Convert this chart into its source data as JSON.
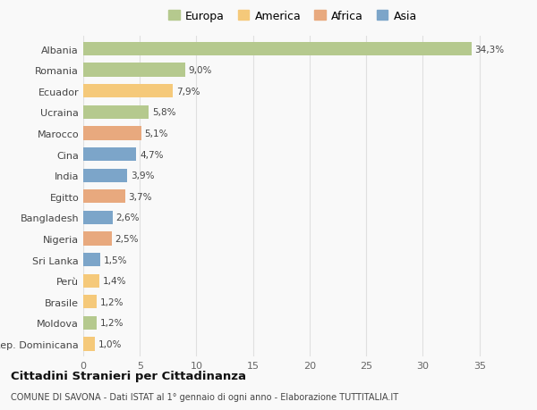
{
  "categories": [
    "Albania",
    "Romania",
    "Ecuador",
    "Ucraina",
    "Marocco",
    "Cina",
    "India",
    "Egitto",
    "Bangladesh",
    "Nigeria",
    "Sri Lanka",
    "Perù",
    "Brasile",
    "Moldova",
    "Rep. Dominicana"
  ],
  "values": [
    34.3,
    9.0,
    7.9,
    5.8,
    5.1,
    4.7,
    3.9,
    3.7,
    2.6,
    2.5,
    1.5,
    1.4,
    1.2,
    1.2,
    1.0
  ],
  "labels": [
    "34,3%",
    "9,0%",
    "7,9%",
    "5,8%",
    "5,1%",
    "4,7%",
    "3,9%",
    "3,7%",
    "2,6%",
    "2,5%",
    "1,5%",
    "1,4%",
    "1,2%",
    "1,2%",
    "1,0%"
  ],
  "colors": [
    "#b5c98e",
    "#b5c98e",
    "#f5c97a",
    "#b5c98e",
    "#e8a97e",
    "#7ca5c9",
    "#7ca5c9",
    "#e8a97e",
    "#7ca5c9",
    "#e8a97e",
    "#7ca5c9",
    "#f5c97a",
    "#f5c97a",
    "#b5c98e",
    "#f5c97a"
  ],
  "legend": {
    "Europa": "#b5c98e",
    "America": "#f5c97a",
    "Africa": "#e8a97e",
    "Asia": "#7ca5c9"
  },
  "title": "Cittadini Stranieri per Cittadinanza",
  "subtitle": "COMUNE DI SAVONA - Dati ISTAT al 1° gennaio di ogni anno - Elaborazione TUTTITALIA.IT",
  "xlim": [
    0,
    37
  ],
  "xticks": [
    0,
    5,
    10,
    15,
    20,
    25,
    30,
    35
  ],
  "background_color": "#f9f9f9",
  "grid_color": "#e0e0e0",
  "bar_height": 0.65
}
